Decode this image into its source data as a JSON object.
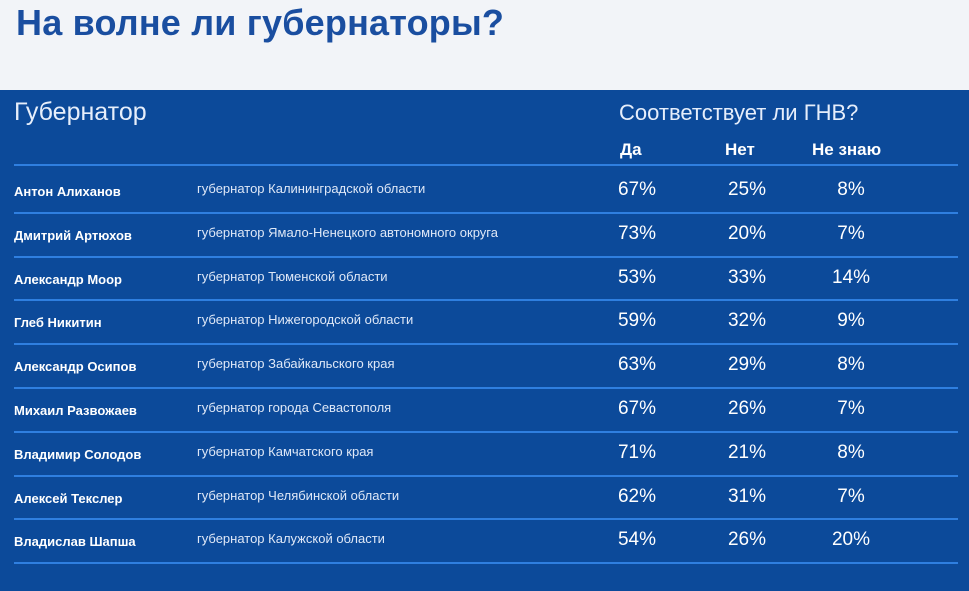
{
  "title": "На волне ли губернаторы?",
  "table": {
    "governor_header": "Губернатор",
    "question_header": "Соответствует ли ГНВ?",
    "answers": [
      "Да",
      "Нет",
      "Не знаю"
    ]
  },
  "chart_data": {
    "type": "table",
    "title": "На волне ли губернаторы?",
    "columns": [
      "Губернатор",
      "",
      "Да",
      "Нет",
      "Не знаю"
    ],
    "rows": [
      {
        "name": "Антон Алиханов",
        "position": "губернатор Калининградской области",
        "yes": "67%",
        "no": "25%",
        "dont_know": "8%"
      },
      {
        "name": "Дмитрий Артюхов",
        "position": "губернатор Ямало-Ненецкого автономного округа",
        "yes": "73%",
        "no": "20%",
        "dont_know": "7%"
      },
      {
        "name": "Александр Моор",
        "position": "губернатор Тюменской области",
        "yes": "53%",
        "no": "33%",
        "dont_know": "14%"
      },
      {
        "name": "Глеб Никитин",
        "position": "губернатор Нижегородской области",
        "yes": "59%",
        "no": "32%",
        "dont_know": "9%"
      },
      {
        "name": "Александр Осипов",
        "position": "губернатор Забайкальского края",
        "yes": "63%",
        "no": "29%",
        "dont_know": "8%"
      },
      {
        "name": "Михаил Развожаев",
        "position": "губернатор города Севастополя",
        "yes": "67%",
        "no": "26%",
        "dont_know": "7%"
      },
      {
        "name": "Владимир Солодов",
        "position": "губернатор Камчатского края",
        "yes": "71%",
        "no": "21%",
        "dont_know": "8%"
      },
      {
        "name": "Алексей Текслер",
        "position": "губернатор Челябинской области",
        "yes": "62%",
        "no": "31%",
        "dont_know": "7%"
      },
      {
        "name": "Владислав Шапша",
        "position": "губернатор Калужской области",
        "yes": "54%",
        "no": "26%",
        "dont_know": "20%"
      }
    ]
  },
  "colors": {
    "panel": "#0c4a9a",
    "title": "#1a4ea0",
    "divider": "#2f7fe0"
  }
}
